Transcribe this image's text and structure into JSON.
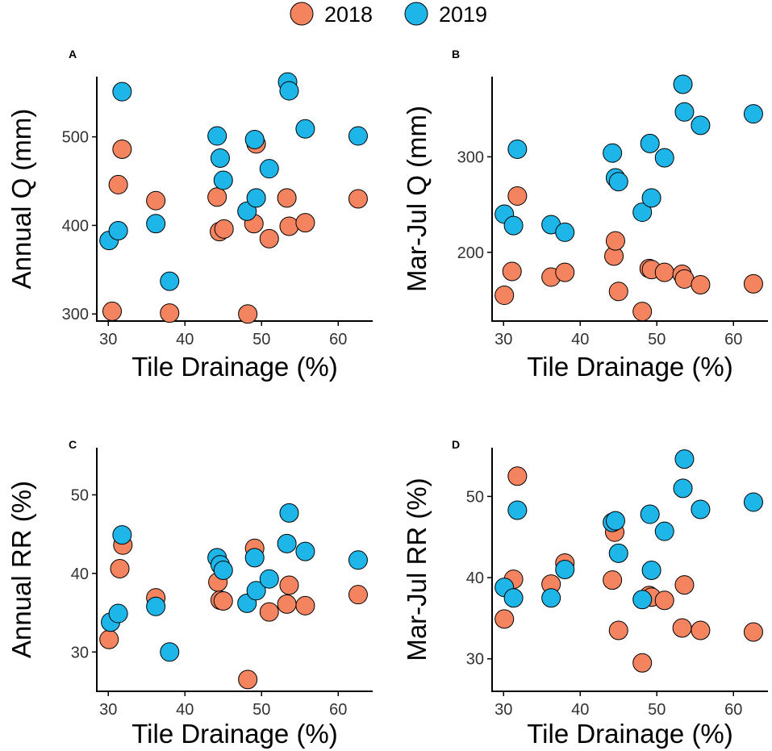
{
  "legend": {
    "items": [
      {
        "label": "2018",
        "color": "#F4845F"
      },
      {
        "label": "2019",
        "color": "#1EB6E8"
      }
    ]
  },
  "chart_data": [
    {
      "panel": "A",
      "type": "scatter",
      "xlabel": "Tile Drainage (%)",
      "ylabel": "Annual Q (mm)",
      "xlim": [
        28.5,
        64.5
      ],
      "ylim": [
        292,
        568
      ],
      "xticks": [
        30,
        40,
        50,
        60
      ],
      "yticks": [
        300,
        400,
        500
      ],
      "grid": false,
      "series": [
        {
          "name": "2018",
          "color": "#F4845F",
          "points": [
            [
              30.5,
              303
            ],
            [
              31.3,
              446
            ],
            [
              31.8,
              486
            ],
            [
              36.2,
              428
            ],
            [
              38.0,
              301
            ],
            [
              44.2,
              432
            ],
            [
              44.5,
              393
            ],
            [
              45.1,
              396
            ],
            [
              48.2,
              300
            ],
            [
              49.0,
              402
            ],
            [
              49.3,
              492
            ],
            [
              51.0,
              385
            ],
            [
              53.3,
              431
            ],
            [
              53.6,
              399
            ],
            [
              55.7,
              403
            ],
            [
              62.6,
              430
            ]
          ]
        },
        {
          "name": "2019",
          "color": "#1EB6E8",
          "points": [
            [
              30.1,
              383
            ],
            [
              31.3,
              394
            ],
            [
              31.8,
              551
            ],
            [
              36.2,
              402
            ],
            [
              38.0,
              337
            ],
            [
              44.2,
              501
            ],
            [
              44.6,
              476
            ],
            [
              45.0,
              451
            ],
            [
              48.1,
              416
            ],
            [
              49.1,
              497
            ],
            [
              49.3,
              431
            ],
            [
              51.0,
              464
            ],
            [
              53.4,
              562
            ],
            [
              53.6,
              552
            ],
            [
              55.7,
              509
            ],
            [
              62.6,
              501
            ]
          ]
        }
      ]
    },
    {
      "panel": "B",
      "type": "scatter",
      "xlabel": "Tile Drainage (%)",
      "ylabel": "Mar-Jul Q (mm)",
      "xlim": [
        28.5,
        64.5
      ],
      "ylim": [
        128,
        384
      ],
      "xticks": [
        30,
        40,
        50,
        60
      ],
      "yticks": [
        200,
        300
      ],
      "grid": false,
      "series": [
        {
          "name": "2018",
          "color": "#F4845F",
          "points": [
            [
              30.1,
              155
            ],
            [
              31.1,
              180
            ],
            [
              31.8,
              259
            ],
            [
              36.2,
              174
            ],
            [
              38.0,
              179
            ],
            [
              44.4,
              196
            ],
            [
              44.6,
              212
            ],
            [
              45.0,
              159
            ],
            [
              48.1,
              138
            ],
            [
              49.0,
              183
            ],
            [
              49.3,
              182
            ],
            [
              51.0,
              179
            ],
            [
              53.3,
              177
            ],
            [
              53.6,
              172
            ],
            [
              55.7,
              166
            ],
            [
              62.6,
              167
            ]
          ]
        },
        {
          "name": "2019",
          "color": "#1EB6E8",
          "points": [
            [
              30.1,
              240
            ],
            [
              31.3,
              228
            ],
            [
              31.8,
              308
            ],
            [
              36.2,
              229
            ],
            [
              38.0,
              221
            ],
            [
              44.2,
              304
            ],
            [
              44.6,
              278
            ],
            [
              45.0,
              274
            ],
            [
              48.1,
              242
            ],
            [
              49.1,
              314
            ],
            [
              49.3,
              257
            ],
            [
              51.0,
              299
            ],
            [
              53.4,
              376
            ],
            [
              53.6,
              347
            ],
            [
              55.7,
              333
            ],
            [
              62.6,
              345
            ]
          ]
        }
      ]
    },
    {
      "panel": "C",
      "type": "scatter",
      "xlabel": "Tile Drainage (%)",
      "ylabel": "Annual RR (%)",
      "xlim": [
        28.5,
        64.5
      ],
      "ylim": [
        25,
        56
      ],
      "xticks": [
        30,
        40,
        50,
        60
      ],
      "yticks": [
        30,
        40,
        50
      ],
      "grid": false,
      "series": [
        {
          "name": "2018",
          "color": "#F4845F",
          "points": [
            [
              30.1,
              31.6
            ],
            [
              31.5,
              40.6
            ],
            [
              31.9,
              43.6
            ],
            [
              36.2,
              36.9
            ],
            [
              44.3,
              38.9
            ],
            [
              44.6,
              36.6
            ],
            [
              45.0,
              36.5
            ],
            [
              48.2,
              26.5
            ],
            [
              49.1,
              43.2
            ],
            [
              51.0,
              35.1
            ],
            [
              53.3,
              36.1
            ],
            [
              53.6,
              38.5
            ],
            [
              55.7,
              35.9
            ],
            [
              62.6,
              37.3
            ]
          ]
        },
        {
          "name": "2019",
          "color": "#1EB6E8",
          "points": [
            [
              30.3,
              33.8
            ],
            [
              31.3,
              34.9
            ],
            [
              31.8,
              44.9
            ],
            [
              36.2,
              35.8
            ],
            [
              38.0,
              30.0
            ],
            [
              44.2,
              42.0
            ],
            [
              44.6,
              41.1
            ],
            [
              45.0,
              40.4
            ],
            [
              48.1,
              36.2
            ],
            [
              49.1,
              42.0
            ],
            [
              49.3,
              37.8
            ],
            [
              51.0,
              39.3
            ],
            [
              53.3,
              43.8
            ],
            [
              53.6,
              47.7
            ],
            [
              55.7,
              42.8
            ],
            [
              62.6,
              41.7
            ]
          ]
        }
      ]
    },
    {
      "panel": "D",
      "type": "scatter",
      "xlabel": "Tile Drainage (%)",
      "ylabel": "Mar-Jul RR (%)",
      "xlim": [
        28.5,
        64.5
      ],
      "ylim": [
        26,
        56
      ],
      "xticks": [
        30,
        40,
        50,
        60
      ],
      "yticks": [
        30,
        40,
        50
      ],
      "grid": false,
      "series": [
        {
          "name": "2018",
          "color": "#F4845F",
          "points": [
            [
              30.1,
              34.9
            ],
            [
              31.3,
              39.8
            ],
            [
              31.8,
              52.5
            ],
            [
              36.2,
              39.2
            ],
            [
              38.0,
              41.8
            ],
            [
              44.2,
              39.7
            ],
            [
              44.5,
              45.6
            ],
            [
              45.0,
              33.5
            ],
            [
              48.1,
              29.5
            ],
            [
              49.0,
              37.8
            ],
            [
              49.3,
              37.6
            ],
            [
              51.0,
              37.2
            ],
            [
              53.3,
              33.8
            ],
            [
              53.6,
              39.1
            ],
            [
              55.7,
              33.5
            ],
            [
              62.6,
              33.3
            ]
          ]
        },
        {
          "name": "2019",
          "color": "#1EB6E8",
          "points": [
            [
              30.1,
              38.8
            ],
            [
              31.3,
              37.5
            ],
            [
              31.8,
              48.3
            ],
            [
              36.2,
              37.5
            ],
            [
              38.0,
              41.0
            ],
            [
              44.2,
              46.8
            ],
            [
              44.6,
              47.0
            ],
            [
              45.0,
              43.0
            ],
            [
              48.1,
              37.3
            ],
            [
              49.1,
              47.8
            ],
            [
              49.3,
              40.9
            ],
            [
              51.0,
              45.7
            ],
            [
              53.4,
              51.0
            ],
            [
              53.6,
              54.6
            ],
            [
              55.7,
              48.4
            ],
            [
              62.6,
              49.3
            ]
          ]
        }
      ]
    }
  ]
}
